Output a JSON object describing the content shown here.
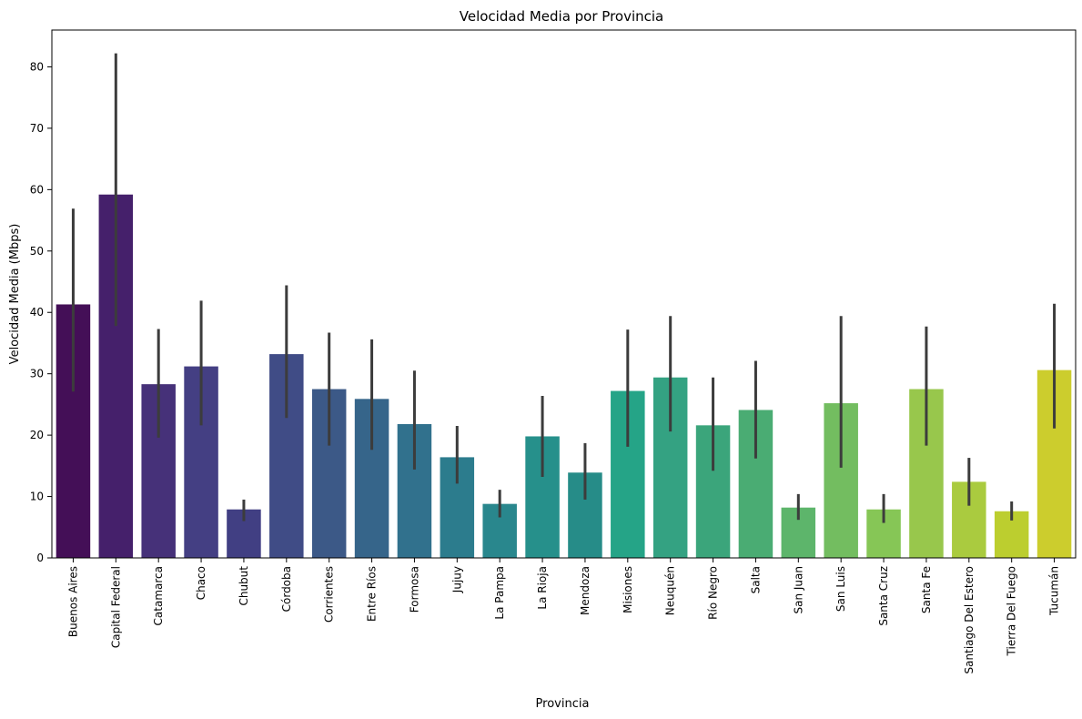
{
  "chart_data": {
    "type": "bar",
    "title": "Velocidad Media por Provincia",
    "xlabel": "Provincia",
    "ylabel": "Velocidad Media (Mbps)",
    "ylim": [
      0,
      86
    ],
    "yticks": [
      0,
      10,
      20,
      30,
      40,
      50,
      60,
      70,
      80
    ],
    "grid": false,
    "legend": "none",
    "categories": [
      "Buenos Aires",
      "Capital Federal",
      "Catamarca",
      "Chaco",
      "Chubut",
      "Córdoba",
      "Corrientes",
      "Entre Ríos",
      "Formosa",
      "Jujuy",
      "La Pampa",
      "La Rioja",
      "Mendoza",
      "Misiones",
      "Neuquén",
      "Río Negro",
      "Salta",
      "San Juan",
      "San Luis",
      "Santa Cruz",
      "Santa Fe",
      "Santiago Del Estero",
      "Tierra Del Fuego",
      "Tucumán"
    ],
    "values": [
      41.3,
      59.2,
      28.3,
      31.2,
      7.9,
      33.2,
      27.5,
      25.9,
      21.8,
      16.4,
      8.8,
      19.8,
      13.9,
      27.2,
      29.4,
      21.6,
      24.1,
      8.2,
      25.2,
      7.9,
      27.5,
      12.4,
      7.6,
      30.6
    ],
    "error_low": [
      27.1,
      37.8,
      19.6,
      21.6,
      6.0,
      22.8,
      18.3,
      17.6,
      14.4,
      12.1,
      6.6,
      13.2,
      9.5,
      18.1,
      20.6,
      14.2,
      16.2,
      6.2,
      14.7,
      5.7,
      18.3,
      8.5,
      6.1,
      21.1
    ],
    "error_high": [
      56.9,
      82.2,
      37.3,
      41.9,
      9.5,
      44.4,
      36.7,
      35.6,
      30.5,
      21.5,
      11.1,
      26.4,
      18.7,
      37.2,
      39.4,
      29.4,
      32.1,
      10.4,
      39.4,
      10.4,
      37.7,
      16.3,
      9.2,
      41.4
    ],
    "colors": [
      "#440f57",
      "#45206b",
      "#463179",
      "#443f83",
      "#413f83",
      "#404c86",
      "#3c5987",
      "#36658a",
      "#31718d",
      "#2c7c8d",
      "#29878d",
      "#26908b",
      "#268c88",
      "#25a487",
      "#34a282",
      "#3ba57b",
      "#4aac73",
      "#5db56b",
      "#73bd60",
      "#86c656",
      "#98c74c",
      "#aacb3f",
      "#bcce2f",
      "#cccd2d"
    ]
  }
}
